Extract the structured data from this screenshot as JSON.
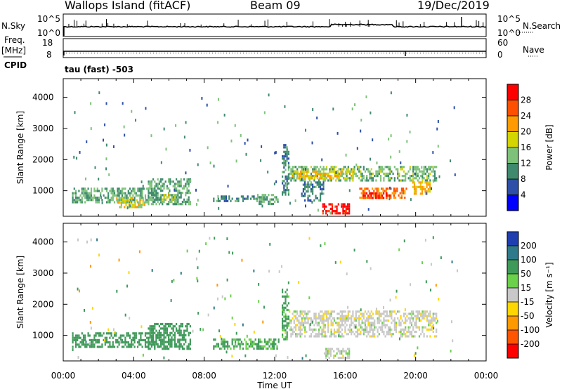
{
  "header": {
    "station": "Wallops Island (fitACF)",
    "beam": "Beam 09",
    "date": "19/Dec/2019"
  },
  "left_labels": {
    "nsky": "N.Sky",
    "freq": "Freq.",
    "freq_unit": "[MHz]",
    "cpid": "CPID"
  },
  "right_labels": {
    "nsearch": "N.Search",
    "nave": "Nave"
  },
  "mode_text": "tau (fast) -503",
  "chart_data": [
    {
      "type": "line",
      "panel": "noise",
      "y_ticks_left": [
        "10^5",
        "10^0"
      ],
      "y_ticks_right": [
        "10^5",
        "10^0"
      ],
      "series_desc": "noise level near baseline with sparse spikes"
    },
    {
      "type": "line",
      "panel": "frequency-nave",
      "y_ticks_left": [
        "18",
        "8"
      ],
      "y_ticks_right": [
        "60",
        "0"
      ]
    },
    {
      "type": "heatmap",
      "panel": "power",
      "ylabel": "Slant Range [km]",
      "yticks": [
        1000,
        2000,
        3000,
        4000
      ],
      "ylim": [
        180,
        4600
      ],
      "colorbar": {
        "label": "Power [dB]",
        "ticks": [
          "4",
          "8",
          "12",
          "16",
          "20",
          "24",
          "28"
        ],
        "range": [
          0,
          32
        ],
        "colors": [
          "#0000ff",
          "#2d4fa8",
          "#3f8a6e",
          "#7ec27a",
          "#d4d400",
          "#ff9b00",
          "#ff5000",
          "#ff0000"
        ]
      },
      "regions": [
        {
          "t0": 0.5,
          "t1": 5.5,
          "r0": 600,
          "r1": 1100,
          "level": 12
        },
        {
          "t0": 3.0,
          "t1": 4.6,
          "r0": 500,
          "r1": 800,
          "level": 18
        },
        {
          "t0": 4.8,
          "t1": 7.2,
          "r0": 600,
          "r1": 1400,
          "level": 12
        },
        {
          "t0": 5.6,
          "t1": 6.4,
          "r0": 700,
          "r1": 900,
          "level": 18
        },
        {
          "t0": 8.5,
          "t1": 11.0,
          "r0": 650,
          "r1": 850,
          "level": 10
        },
        {
          "t0": 11.0,
          "t1": 12.2,
          "r0": 600,
          "r1": 900,
          "level": 12
        },
        {
          "t0": 12.8,
          "t1": 21.2,
          "r0": 1300,
          "r1": 1800,
          "level": 13
        },
        {
          "t0": 13.0,
          "t1": 16.5,
          "r0": 1400,
          "r1": 1650,
          "level": 20
        },
        {
          "t0": 16.8,
          "t1": 19.5,
          "r0": 800,
          "r1": 1100,
          "level": 24
        },
        {
          "t0": 17.0,
          "t1": 18.5,
          "r0": 750,
          "r1": 950,
          "level": 28
        },
        {
          "t0": 19.8,
          "t1": 20.8,
          "r0": 900,
          "r1": 1300,
          "level": 20
        },
        {
          "t0": 14.7,
          "t1": 16.2,
          "r0": 250,
          "r1": 600,
          "level": 30
        },
        {
          "t0": 13.5,
          "t1": 14.8,
          "r0": 700,
          "r1": 1300,
          "level": 10
        },
        {
          "t0": 12.4,
          "t1": 12.8,
          "r0": 900,
          "r1": 2500,
          "level": 9
        }
      ]
    },
    {
      "type": "heatmap",
      "panel": "velocity",
      "ylabel": "Slant Range [km]",
      "xlabel": "Time UT",
      "yticks": [
        1000,
        2000,
        3000,
        4000
      ],
      "ylim": [
        180,
        4600
      ],
      "xticks": [
        "00:00",
        "04:00",
        "08:00",
        "12:00",
        "16:00",
        "20:00",
        "00:00"
      ],
      "xlim": [
        0,
        24
      ],
      "colorbar": {
        "label": "Velocity [m s⁻¹]",
        "ticks": [
          "200",
          "100",
          "50",
          "15",
          "-15",
          "-50",
          "-100",
          "-200"
        ],
        "colors": [
          "#1f3fb0",
          "#2f7a8a",
          "#3f9a5a",
          "#6bd04a",
          "#c8c8c8",
          "#ffd700",
          "#ff9900",
          "#ff5500",
          "#ff0000"
        ]
      },
      "regions": [
        {
          "t0": 0.5,
          "t1": 5.5,
          "r0": 600,
          "r1": 1100,
          "v": 50
        },
        {
          "t0": 4.8,
          "t1": 7.2,
          "r0": 600,
          "r1": 1400,
          "v": 50
        },
        {
          "t0": 8.5,
          "t1": 12.2,
          "r0": 600,
          "r1": 900,
          "v": 40
        },
        {
          "t0": 12.8,
          "t1": 21.2,
          "r0": 1000,
          "r1": 1800,
          "v": 0
        },
        {
          "t0": 14.7,
          "t1": 16.2,
          "r0": 250,
          "r1": 600,
          "v": 0
        },
        {
          "t0": 12.4,
          "t1": 12.8,
          "r0": 900,
          "r1": 2500,
          "v": 40
        }
      ]
    }
  ]
}
